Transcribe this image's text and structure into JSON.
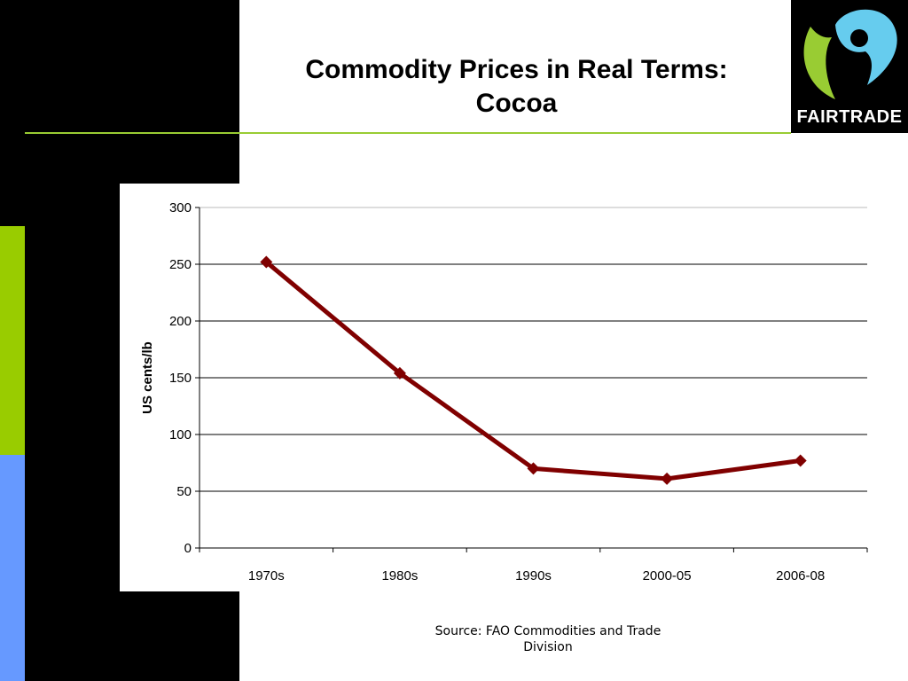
{
  "slide": {
    "title_line1": "Commodity Prices in Real Terms:",
    "title_line2": "Cocoa",
    "source": "Source: FAO Commodities and Trade Division"
  },
  "logo": {
    "text": "FAIRTRADE",
    "icon": "fairtrade-mark-icon"
  },
  "colors": {
    "accent_green": "#99cc00",
    "accent_blue": "#6699ff",
    "line": "#800000",
    "logo_blue": "#66ccee",
    "logo_green": "#99cc33"
  },
  "chart_data": {
    "type": "line",
    "categories": [
      "1970s",
      "1980s",
      "1990s",
      "2000-05",
      "2006-08"
    ],
    "values": [
      252,
      154,
      70,
      61,
      77
    ],
    "ylabel": "US cents/lb",
    "xlabel": "",
    "ylim": [
      0,
      300
    ],
    "yticks": [
      0,
      50,
      100,
      150,
      200,
      250,
      300
    ],
    "grid": true,
    "marker": "diamond"
  }
}
